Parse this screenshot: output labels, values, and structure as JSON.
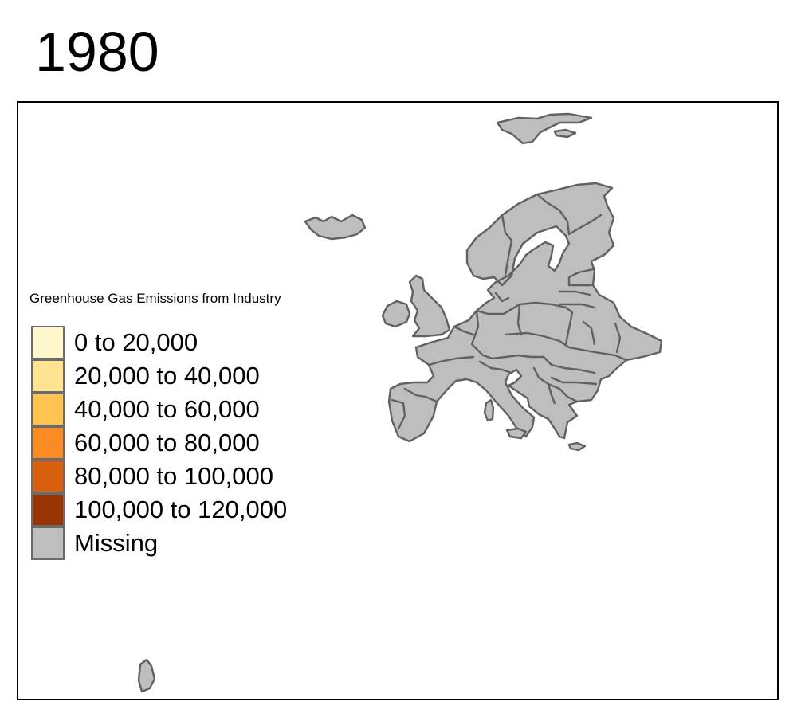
{
  "title": "1980",
  "map": {
    "region": "Europe",
    "all_countries_fill": "#bebebe",
    "border_color": "#616161"
  },
  "legend": {
    "title": "Greenhouse Gas Emissions from Industry",
    "placement": "bottom-left",
    "items": [
      {
        "label": "0 to 20,000",
        "color": "#fff7cc"
      },
      {
        "label": "20,000 to 40,000",
        "color": "#fee391"
      },
      {
        "label": "40,000 to 60,000",
        "color": "#fec44f"
      },
      {
        "label": "60,000 to 80,000",
        "color": "#fb8c24"
      },
      {
        "label": "80,000 to 100,000",
        "color": "#d95f0e"
      },
      {
        "label": "100,000 to 120,000",
        "color": "#993404"
      },
      {
        "label": "Missing",
        "color": "#bebebe"
      }
    ]
  }
}
